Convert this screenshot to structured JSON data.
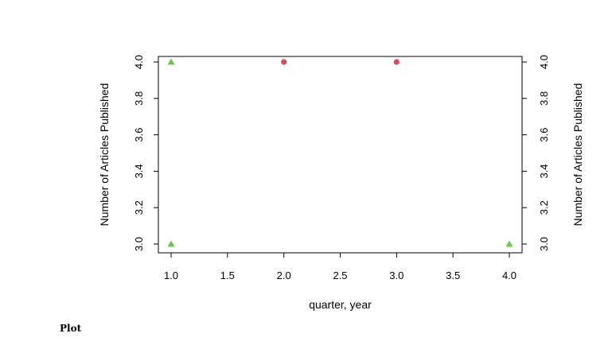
{
  "chart_data": {
    "type": "scatter",
    "xlabel": "quarter, year",
    "ylabel_left": "Number of Articles Published",
    "ylabel_right": "Number of Articles Published",
    "xlim": [
      1.0,
      4.0
    ],
    "ylim": [
      3.0,
      4.0
    ],
    "x_ticks": [
      "1.0",
      "1.5",
      "2.0",
      "2.5",
      "3.0",
      "3.5",
      "4.0"
    ],
    "y_ticks": [
      "3.0",
      "3.2",
      "3.4",
      "3.6",
      "3.8",
      "4.0"
    ],
    "grid": false,
    "series": [
      {
        "marker": "circle",
        "color": "#d94a5c",
        "points": [
          {
            "x": 2.0,
            "y": 4.0
          },
          {
            "x": 3.0,
            "y": 4.0
          }
        ]
      },
      {
        "marker": "triangle",
        "color": "#6cc24a",
        "points": [
          {
            "x": 1.0,
            "y": 4.0
          },
          {
            "x": 1.0,
            "y": 3.0
          },
          {
            "x": 4.0,
            "y": 3.0
          }
        ]
      }
    ]
  },
  "caption": "Plot"
}
